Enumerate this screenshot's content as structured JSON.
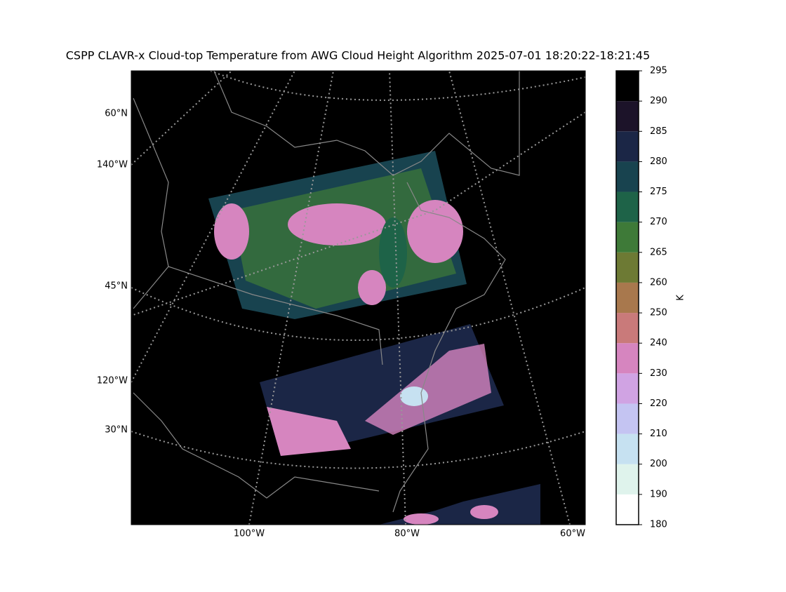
{
  "title": "CSPP CLAVR-x Cloud-top Temperature from AWG Cloud Height Algorithm 2025-07-01 18:20:22-18:21:45",
  "map": {
    "lat_labels": [
      "60°N",
      "45°N",
      "30°N"
    ],
    "lon_left_labels": [
      "140°W",
      "120°W"
    ],
    "lon_bottom_labels": [
      "100°W",
      "80°W",
      "60°W"
    ]
  },
  "colorbar": {
    "label": "K",
    "ticks": [
      180,
      190,
      200,
      210,
      220,
      230,
      240,
      250,
      260,
      265,
      270,
      275,
      280,
      285,
      290,
      295
    ],
    "colors": [
      "#ffffff",
      "#dff3ec",
      "#c6e1f1",
      "#c4c4f2",
      "#d0a3e3",
      "#d685bf",
      "#c97a7a",
      "#a8784d",
      "#6d7a34",
      "#3e7a38",
      "#1e6348",
      "#18434f",
      "#1b2646",
      "#1c1329",
      "#000000"
    ]
  }
}
